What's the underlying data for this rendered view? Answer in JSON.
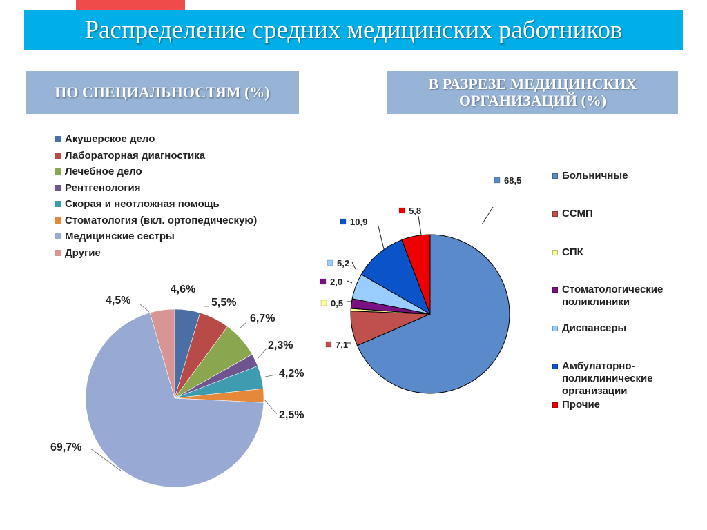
{
  "title": "Распределение средних медицинских работников",
  "subtitles": {
    "left": "ПО СПЕЦИАЛЬНОСТЯМ  (%)",
    "right_line1": "В РАЗРЕЗЕ МЕДИЦИНСКИХ",
    "right_line2": "ОРГАНИЗАЦИЙ (%)"
  },
  "colors": {
    "title_banner": "#00aee8",
    "subtitle_box": "#97b3d6",
    "accent": "#f04b4b"
  },
  "chart_data": [
    {
      "type": "pie",
      "title": "ПО СПЕЦИАЛЬНОСТЯМ  (%)",
      "legend_position": "top-left",
      "slices": [
        {
          "label": "Акушерское дело",
          "value": 4.6,
          "display": "4,6%",
          "color": "#4a6fa5"
        },
        {
          "label": "Лабораторная диагностика",
          "value": 5.5,
          "display": "5,5%",
          "color": "#b84a47"
        },
        {
          "label": "Лечебное дело",
          "value": 6.7,
          "display": "6,7%",
          "color": "#8aa64e"
        },
        {
          "label": "Рентгенология",
          "value": 2.3,
          "display": "2,3%",
          "color": "#6f5590"
        },
        {
          "label": "Скорая и неотложная помощь",
          "value": 4.2,
          "display": "4,2%",
          "color": "#3f9bb0"
        },
        {
          "label": "Стоматология (вкл. ортопедическую)",
          "value": 2.5,
          "display": "2,5%",
          "color": "#e6883a"
        },
        {
          "label": "Медицинские сестры",
          "value": 69.7,
          "display": "69,7%",
          "color": "#98aad3"
        },
        {
          "label": "Другие",
          "value": 4.5,
          "display": "4,5%",
          "color": "#d79593"
        }
      ]
    },
    {
      "type": "pie",
      "title": "В РАЗРЕЗЕ МЕДИЦИНСКИХ ОРГАНИЗАЦИЙ (%)",
      "legend_position": "right",
      "slices": [
        {
          "label": "Больничные",
          "value": 68.5,
          "display": "68,5",
          "color": "#5b8acb"
        },
        {
          "label": "ССМП",
          "value": 7.1,
          "display": "7,1",
          "color": "#c0504d"
        },
        {
          "label": "СПК",
          "value": 0.5,
          "display": "0,5",
          "color": "#ffff99"
        },
        {
          "label": "Стоматологические поликлиники",
          "value": 2.0,
          "display": "2,0",
          "color": "#7a1183"
        },
        {
          "label": "Диспансеры",
          "value": 5.2,
          "display": "5,2",
          "color": "#99ccff"
        },
        {
          "label": "Амбулаторно-поликлинические организации",
          "value": 10.9,
          "display": "10,9",
          "color": "#0a53c9"
        },
        {
          "label": "Прочие",
          "value": 5.8,
          "display": "5,8",
          "color": "#ee0000"
        }
      ]
    }
  ]
}
